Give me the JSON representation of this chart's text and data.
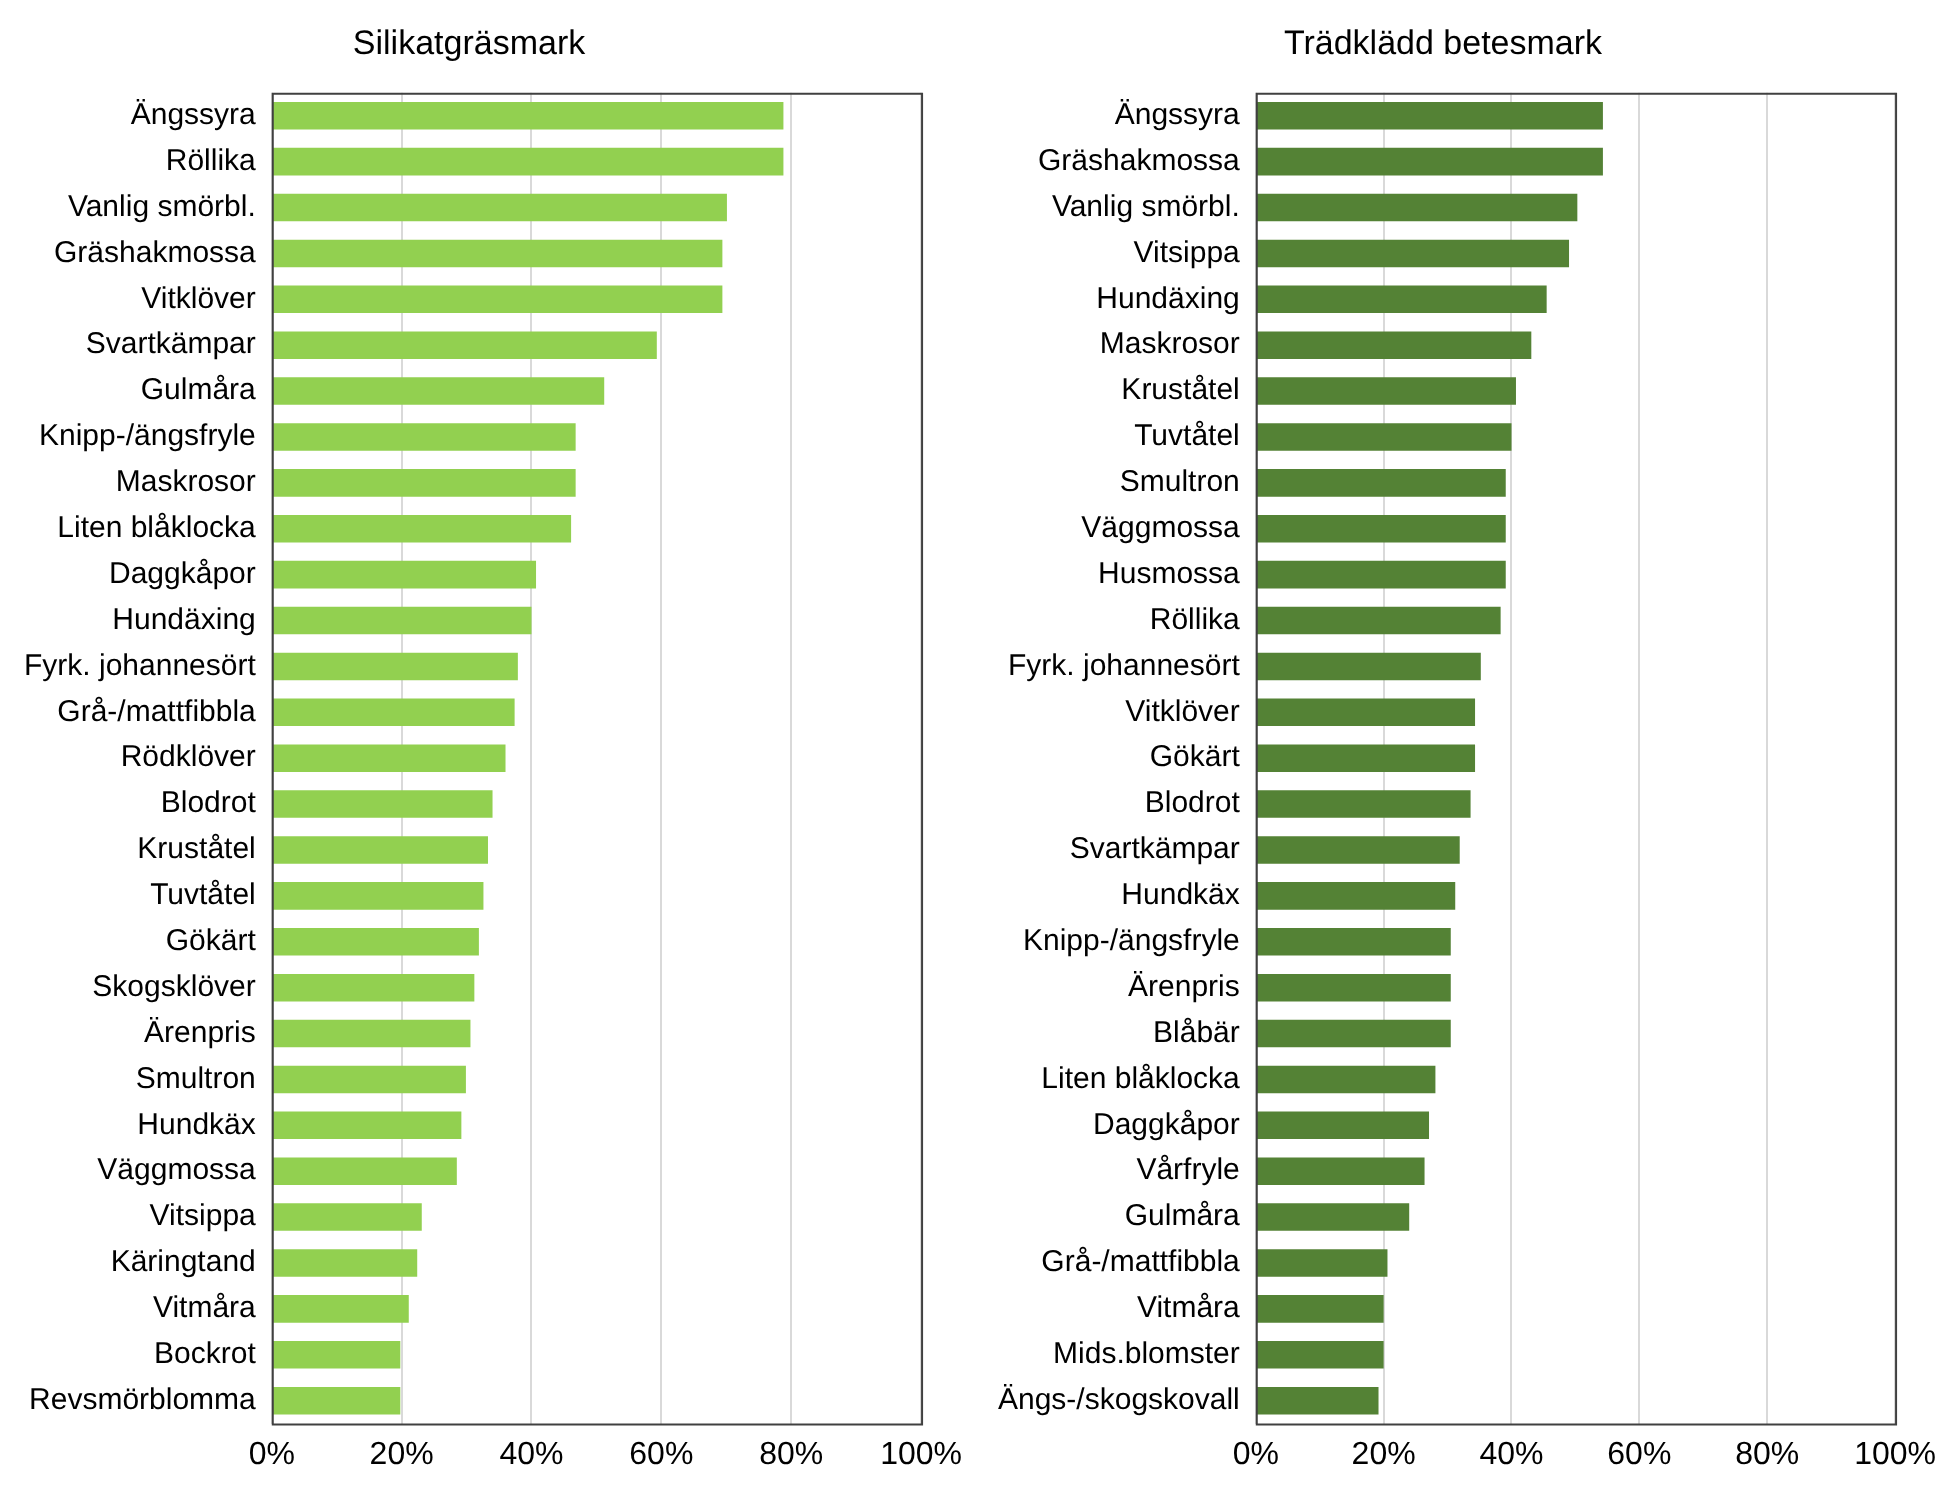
{
  "chart_data": [
    {
      "type": "bar",
      "orientation": "horizontal",
      "title": "Silikatgräsmark",
      "categories": [
        "Ängssyra",
        "Röllika",
        "Vanlig smörbl.",
        "Gräshakmossa",
        "Vitklöver",
        "Svartkämpar",
        "Gulmåra",
        "Knipp-/ängsfryle",
        "Maskrosor",
        "Liten blåklocka",
        "Daggkåpor",
        "Hundäxing",
        "Fyrk. johannesört",
        "Grå-/mattfibbla",
        "Rödklöver",
        "Blodrot",
        "Kruståtel",
        "Tuvtåtel",
        "Gökärt",
        "Skogsklöver",
        "Ärenpris",
        "Smultron",
        "Hundkäx",
        "Väggmossa",
        "Vitsippa",
        "Käringtand",
        "Vitmåra",
        "Bockrot",
        "Revsmörblomma"
      ],
      "values": [
        78.8,
        78.8,
        70.1,
        69.4,
        69.4,
        59.3,
        51.2,
        46.8,
        46.8,
        46.1,
        40.7,
        40.0,
        37.9,
        37.4,
        36.0,
        34.0,
        33.3,
        32.6,
        31.9,
        31.2,
        30.6,
        29.9,
        29.2,
        28.5,
        23.1,
        22.4,
        21.1,
        19.8,
        19.8
      ],
      "color": "#92d050",
      "xlim": [
        0,
        100
      ],
      "xticks": [
        {
          "value": 0,
          "label": "0%"
        },
        {
          "value": 20,
          "label": "20%"
        },
        {
          "value": 40,
          "label": "40%"
        },
        {
          "value": 60,
          "label": "60%"
        },
        {
          "value": 80,
          "label": "80%"
        },
        {
          "value": 100,
          "label": "100%"
        }
      ],
      "grid": "x",
      "legend": false
    },
    {
      "type": "bar",
      "orientation": "horizontal",
      "title": "Trädklädd betesmark",
      "categories": [
        "Ängssyra",
        "Gräshakmossa",
        "Vanlig smörbl.",
        "Vitsippa",
        "Hundäxing",
        "Maskrosor",
        "Kruståtel",
        "Tuvtåtel",
        "Smultron",
        "Väggmossa",
        "Husmossa",
        "Röllika",
        "Fyrk. johannesört",
        "Vitklöver",
        "Gökärt",
        "Blodrot",
        "Svartkämpar",
        "Hundkäx",
        "Knipp-/ängsfryle",
        "Ärenpris",
        "Blåbär",
        "Liten blåklocka",
        "Daggkåpor",
        "Vårfryle",
        "Gulmåra",
        "Grå-/mattfibbla",
        "Vitmåra",
        "Mids.blomster",
        "Ängs-/skogskovall"
      ],
      "values": [
        54.3,
        54.3,
        50.3,
        49.0,
        45.5,
        43.1,
        40.7,
        40.0,
        39.1,
        39.1,
        39.1,
        38.3,
        35.2,
        34.3,
        34.3,
        33.6,
        31.9,
        31.2,
        30.5,
        30.5,
        30.5,
        28.1,
        27.1,
        26.4,
        24.0,
        20.6,
        20.0,
        20.0,
        19.2
      ],
      "color": "#548235",
      "xlim": [
        0,
        100
      ],
      "xticks": [
        {
          "value": 0,
          "label": "0%"
        },
        {
          "value": 20,
          "label": "20%"
        },
        {
          "value": 40,
          "label": "40%"
        },
        {
          "value": 60,
          "label": "60%"
        },
        {
          "value": 80,
          "label": "80%"
        },
        {
          "value": 100,
          "label": "100%"
        }
      ],
      "grid": "x",
      "legend": false
    }
  ]
}
